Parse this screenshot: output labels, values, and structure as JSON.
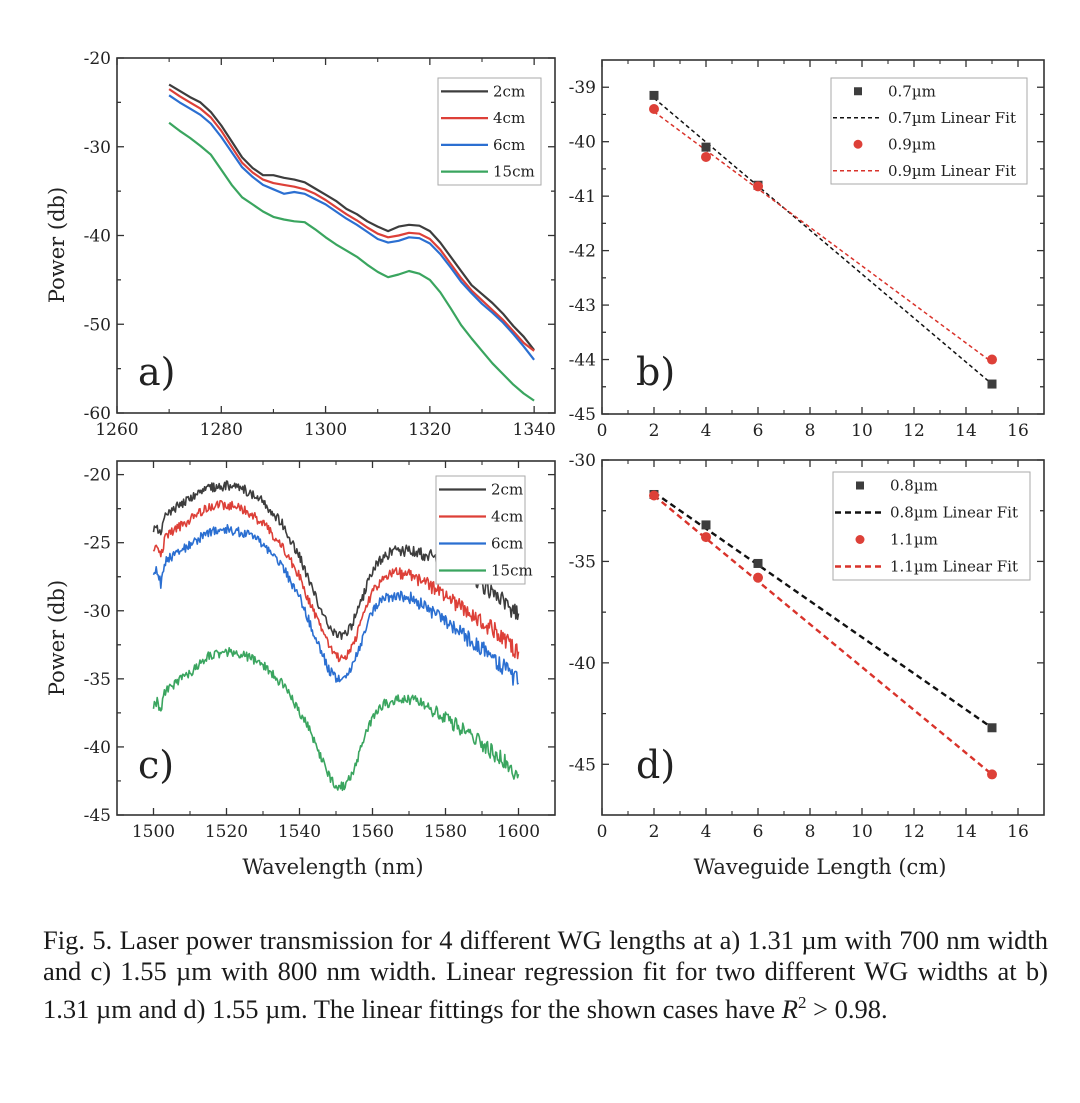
{
  "figure": {
    "caption": "Fig. 5.  Laser power transmission for 4 different WG lengths at a) 1.31 µm with 700 nm width and c) 1.55 µm with 800 nm width. Linear regression fit for two different WG widths at b) 1.31 µm and d) 1.55 µm. The linear fittings for the shown cases have ",
    "caption_math": {
      "var": "R",
      "sup": "2",
      "rest": " > 0.98."
    }
  },
  "colors": {
    "black": "#3d3d3d",
    "red": "#dd4038",
    "blue": "#2b6fd1",
    "green": "#3aa55f",
    "fit_black": "#111111",
    "fit_red": "#d9332b"
  },
  "chart_data": [
    {
      "id": "a",
      "panel_label": "a)",
      "type": "line",
      "title": "",
      "xlabel": "",
      "ylabel": "Power (db)",
      "xlim": [
        1260,
        1344
      ],
      "ylim": [
        -60,
        -20
      ],
      "xticks": [
        1260,
        1280,
        1300,
        1320,
        1340
      ],
      "yticks": [
        -60,
        -50,
        -40,
        -30,
        -20
      ],
      "legend_position": "top-right",
      "series": [
        {
          "name": "2cm",
          "color": "black",
          "x": [
            1270,
            1272,
            1274,
            1276,
            1278,
            1280,
            1282,
            1284,
            1286,
            1288,
            1290,
            1292,
            1294,
            1296,
            1298,
            1300,
            1302,
            1304,
            1306,
            1308,
            1310,
            1312,
            1314,
            1316,
            1318,
            1320,
            1322,
            1324,
            1326,
            1328,
            1330,
            1332,
            1334,
            1336,
            1338,
            1340
          ],
          "y": [
            -23.0,
            -23.7,
            -24.4,
            -25.0,
            -26.1,
            -27.6,
            -29.4,
            -31.2,
            -32.4,
            -33.2,
            -33.2,
            -33.5,
            -33.7,
            -34.0,
            -34.7,
            -35.4,
            -36.1,
            -37.0,
            -37.6,
            -38.4,
            -39.0,
            -39.5,
            -39.0,
            -38.8,
            -38.9,
            -39.5,
            -40.8,
            -42.4,
            -44.0,
            -45.6,
            -46.6,
            -47.6,
            -48.8,
            -50.2,
            -51.4,
            -52.9
          ]
        },
        {
          "name": "4cm",
          "color": "red",
          "x": [
            1270,
            1272,
            1274,
            1276,
            1278,
            1280,
            1282,
            1284,
            1286,
            1288,
            1290,
            1292,
            1294,
            1296,
            1298,
            1300,
            1302,
            1304,
            1306,
            1308,
            1310,
            1312,
            1314,
            1316,
            1318,
            1320,
            1322,
            1324,
            1326,
            1328,
            1330,
            1332,
            1334,
            1336,
            1338,
            1340
          ],
          "y": [
            -23.5,
            -24.3,
            -25.0,
            -25.7,
            -26.7,
            -28.2,
            -30.0,
            -31.8,
            -32.9,
            -33.7,
            -34.1,
            -34.3,
            -34.5,
            -34.8,
            -35.3,
            -36.0,
            -36.8,
            -37.6,
            -38.3,
            -39.1,
            -39.8,
            -40.2,
            -40.0,
            -39.7,
            -39.8,
            -40.4,
            -41.6,
            -43.2,
            -44.8,
            -46.2,
            -47.3,
            -48.4,
            -49.5,
            -50.8,
            -52.1,
            -53.0
          ]
        },
        {
          "name": "6cm",
          "color": "blue",
          "x": [
            1270,
            1272,
            1274,
            1276,
            1278,
            1280,
            1282,
            1284,
            1286,
            1288,
            1290,
            1292,
            1294,
            1296,
            1298,
            1300,
            1302,
            1304,
            1306,
            1308,
            1310,
            1312,
            1314,
            1316,
            1318,
            1320,
            1322,
            1324,
            1326,
            1328,
            1330,
            1332,
            1334,
            1336,
            1338,
            1340
          ],
          "y": [
            -24.2,
            -25.0,
            -25.7,
            -26.4,
            -27.4,
            -28.9,
            -30.6,
            -32.3,
            -33.4,
            -34.3,
            -34.8,
            -35.3,
            -35.1,
            -35.3,
            -35.9,
            -36.5,
            -37.3,
            -38.1,
            -38.8,
            -39.6,
            -40.4,
            -40.8,
            -40.6,
            -40.2,
            -40.3,
            -40.9,
            -42.1,
            -43.6,
            -45.2,
            -46.5,
            -47.7,
            -48.7,
            -49.8,
            -51.1,
            -52.5,
            -54.0
          ]
        },
        {
          "name": "15cm",
          "color": "green",
          "x": [
            1270,
            1272,
            1274,
            1276,
            1278,
            1280,
            1282,
            1284,
            1286,
            1288,
            1290,
            1292,
            1294,
            1296,
            1298,
            1300,
            1302,
            1304,
            1306,
            1308,
            1310,
            1312,
            1314,
            1316,
            1318,
            1320,
            1322,
            1324,
            1326,
            1328,
            1330,
            1332,
            1334,
            1336,
            1338,
            1340
          ],
          "y": [
            -27.3,
            -28.2,
            -29.0,
            -29.9,
            -30.9,
            -32.6,
            -34.3,
            -35.7,
            -36.5,
            -37.3,
            -37.9,
            -38.2,
            -38.4,
            -38.5,
            -39.3,
            -40.2,
            -41.0,
            -41.7,
            -42.4,
            -43.3,
            -44.1,
            -44.7,
            -44.4,
            -44.0,
            -44.3,
            -45.0,
            -46.4,
            -48.2,
            -50.1,
            -51.6,
            -53.0,
            -54.4,
            -55.6,
            -56.8,
            -57.8,
            -58.6
          ]
        }
      ]
    },
    {
      "id": "b",
      "panel_label": "b)",
      "type": "scatter",
      "title": "",
      "xlabel": "",
      "ylabel": "",
      "xlim": [
        0,
        17
      ],
      "ylim": [
        -45,
        -38.5
      ],
      "xticks": [
        0,
        2,
        4,
        6,
        8,
        10,
        12,
        14,
        16
      ],
      "yticks": [
        -45,
        -44,
        -43,
        -42,
        -41,
        -40,
        -39
      ],
      "legend_position": "top-right",
      "series": [
        {
          "name": "0.7µm",
          "marker": "square",
          "color": "black",
          "x": [
            2,
            4,
            6,
            15
          ],
          "y": [
            -39.15,
            -40.1,
            -40.8,
            -44.45
          ]
        },
        {
          "name": "0.7µm Linear Fit",
          "style": "dashed",
          "color": "fit_black",
          "x": [
            2,
            15
          ],
          "y": [
            -39.2,
            -44.45
          ]
        },
        {
          "name": "0.9µm",
          "marker": "circle",
          "color": "red",
          "x": [
            2,
            4,
            6,
            15
          ],
          "y": [
            -39.4,
            -40.28,
            -40.82,
            -44.0
          ]
        },
        {
          "name": "0.9µm Linear Fit",
          "style": "dashed",
          "color": "fit_red",
          "x": [
            2,
            15
          ],
          "y": [
            -39.45,
            -44.05
          ]
        }
      ]
    },
    {
      "id": "c",
      "panel_label": "c)",
      "type": "line",
      "title": "",
      "xlabel": "Wavelength (nm)",
      "ylabel": "Power (db)",
      "xlim": [
        1490,
        1610
      ],
      "ylim": [
        -45,
        -19
      ],
      "xticks": [
        1500,
        1520,
        1540,
        1560,
        1580,
        1600
      ],
      "yticks": [
        -45,
        -40,
        -35,
        -30,
        -25,
        -20
      ],
      "legend_position": "top-right",
      "series": [
        {
          "name": "2cm",
          "color": "black",
          "x": [
            1500,
            1501,
            1502,
            1503,
            1505,
            1510,
            1515,
            1520,
            1525,
            1530,
            1535,
            1540,
            1543,
            1546,
            1548,
            1550,
            1552,
            1554,
            1556,
            1558,
            1560,
            1563,
            1566,
            1570,
            1575,
            1580,
            1585,
            1590,
            1595,
            1600
          ],
          "y": [
            -24.0,
            -23.8,
            -24.5,
            -23.2,
            -22.6,
            -21.8,
            -21.0,
            -20.8,
            -21.1,
            -22.0,
            -23.5,
            -26.0,
            -28.0,
            -30.0,
            -31.2,
            -31.8,
            -31.9,
            -31.2,
            -30.0,
            -28.5,
            -27.0,
            -26.0,
            -25.6,
            -25.6,
            -25.9,
            -26.3,
            -27.0,
            -28.0,
            -29.2,
            -30.2
          ]
        },
        {
          "name": "4cm",
          "color": "red",
          "x": [
            1500,
            1501,
            1502,
            1503,
            1505,
            1510,
            1515,
            1520,
            1525,
            1530,
            1535,
            1540,
            1543,
            1546,
            1548,
            1550,
            1552,
            1554,
            1556,
            1558,
            1560,
            1563,
            1566,
            1570,
            1575,
            1580,
            1585,
            1590,
            1595,
            1600
          ],
          "y": [
            -25.3,
            -25.0,
            -26.2,
            -24.8,
            -24.2,
            -23.3,
            -22.4,
            -22.2,
            -22.6,
            -23.6,
            -25.1,
            -27.5,
            -29.5,
            -31.4,
            -32.6,
            -33.4,
            -33.5,
            -32.8,
            -31.6,
            -30.0,
            -28.5,
            -27.6,
            -27.2,
            -27.4,
            -28.0,
            -29.0,
            -29.8,
            -30.8,
            -31.8,
            -33.0
          ]
        },
        {
          "name": "6cm",
          "color": "blue",
          "x": [
            1500,
            1501,
            1502,
            1503,
            1505,
            1510,
            1515,
            1520,
            1525,
            1530,
            1535,
            1540,
            1543,
            1546,
            1548,
            1550,
            1552,
            1554,
            1556,
            1558,
            1560,
            1563,
            1566,
            1570,
            1575,
            1580,
            1585,
            1590,
            1595,
            1600
          ],
          "y": [
            -27.2,
            -27.0,
            -28.0,
            -26.4,
            -26.0,
            -25.2,
            -24.2,
            -24.0,
            -24.3,
            -25.1,
            -26.6,
            -29.0,
            -31.0,
            -33.0,
            -34.3,
            -35.0,
            -35.1,
            -34.4,
            -33.0,
            -31.5,
            -30.0,
            -29.1,
            -28.9,
            -29.0,
            -29.8,
            -30.8,
            -31.8,
            -32.8,
            -33.9,
            -35.3
          ]
        },
        {
          "name": "15cm",
          "color": "green",
          "x": [
            1500,
            1501,
            1502,
            1503,
            1505,
            1510,
            1515,
            1520,
            1525,
            1530,
            1535,
            1540,
            1543,
            1546,
            1548,
            1550,
            1552,
            1554,
            1556,
            1558,
            1560,
            1563,
            1566,
            1570,
            1575,
            1580,
            1585,
            1590,
            1595,
            1600
          ],
          "y": [
            -37.0,
            -36.6,
            -37.5,
            -36.0,
            -35.5,
            -34.6,
            -33.3,
            -33.0,
            -33.3,
            -34.0,
            -35.3,
            -37.4,
            -38.9,
            -40.8,
            -42.1,
            -42.8,
            -42.9,
            -42.3,
            -40.8,
            -39.2,
            -37.8,
            -36.9,
            -36.6,
            -36.5,
            -37.0,
            -37.9,
            -38.8,
            -39.8,
            -40.9,
            -42.0
          ]
        }
      ]
    },
    {
      "id": "d",
      "panel_label": "d)",
      "type": "scatter",
      "title": "",
      "xlabel": "Waveguide Length (cm)",
      "ylabel": "",
      "xlim": [
        0,
        17
      ],
      "ylim": [
        -47.5,
        -30
      ],
      "xticks": [
        0,
        2,
        4,
        6,
        8,
        10,
        12,
        14,
        16
      ],
      "yticks": [
        -45,
        -40,
        -35,
        -30
      ],
      "legend_position": "top-right",
      "series": [
        {
          "name": "0.8µm",
          "marker": "square",
          "color": "black",
          "x": [
            2,
            4,
            6,
            15
          ],
          "y": [
            -31.7,
            -33.2,
            -35.1,
            -43.2
          ]
        },
        {
          "name": "0.8µm Linear Fit",
          "style": "dashed",
          "color": "fit_black",
          "x": [
            2,
            15
          ],
          "y": [
            -31.6,
            -43.2
          ]
        },
        {
          "name": "1.1µm",
          "marker": "circle",
          "color": "red",
          "x": [
            2,
            4,
            6,
            15
          ],
          "y": [
            -31.75,
            -33.8,
            -35.8,
            -45.5
          ]
        },
        {
          "name": "1.1µm Linear Fit",
          "style": "dashed",
          "color": "fit_red",
          "x": [
            2,
            15
          ],
          "y": [
            -31.75,
            -45.5
          ]
        }
      ]
    }
  ]
}
